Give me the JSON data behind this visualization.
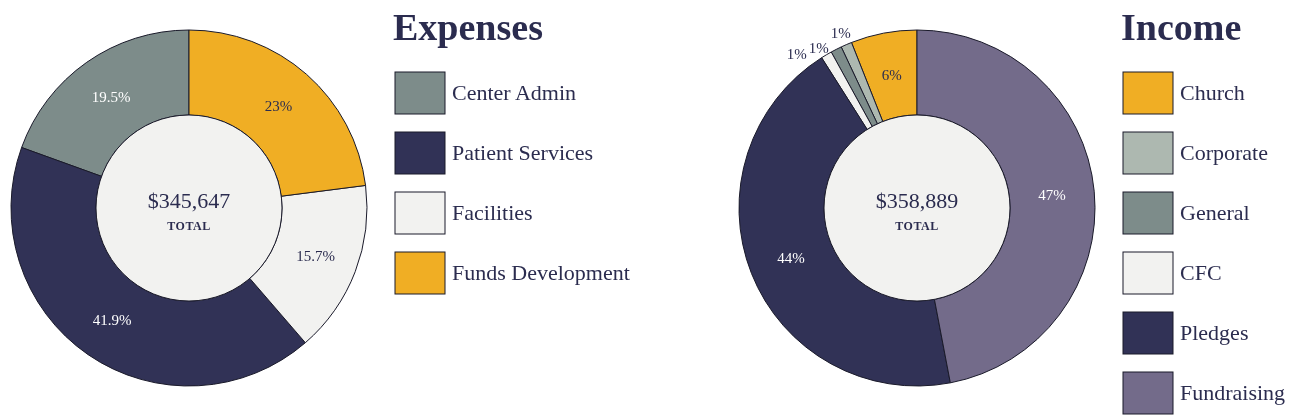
{
  "chart_data": [
    {
      "type": "donut",
      "title": "Expenses",
      "categories": [
        "Center Admin",
        "Patient Services",
        "Facilities",
        "Funds Development"
      ],
      "values": [
        19.5,
        41.9,
        15.7,
        23
      ],
      "colors": [
        "#7d8c8a",
        "#313256",
        "#f2f2f0",
        "#f0ae24"
      ],
      "value_labels": [
        "19.5%",
        "41.9%",
        "15.7%",
        "23%"
      ],
      "annotations": [
        "$345,647",
        "TOTAL"
      ],
      "legend": "right"
    },
    {
      "type": "donut",
      "title": "Income",
      "categories": [
        "Church",
        "Corporate",
        "General",
        "CFC",
        "Pledges",
        "Fundraising"
      ],
      "values": [
        6,
        1,
        1,
        1,
        44,
        47
      ],
      "colors": [
        "#f0ae24",
        "#adb8b0",
        "#7d8c8a",
        "#f2f2f0",
        "#313256",
        "#736b8a"
      ],
      "value_labels": [
        "6%",
        "1%",
        "1%",
        "1%",
        "44%",
        "47%"
      ],
      "annotations": [
        "$358,889",
        "TOTAL"
      ],
      "legend": "right"
    }
  ]
}
